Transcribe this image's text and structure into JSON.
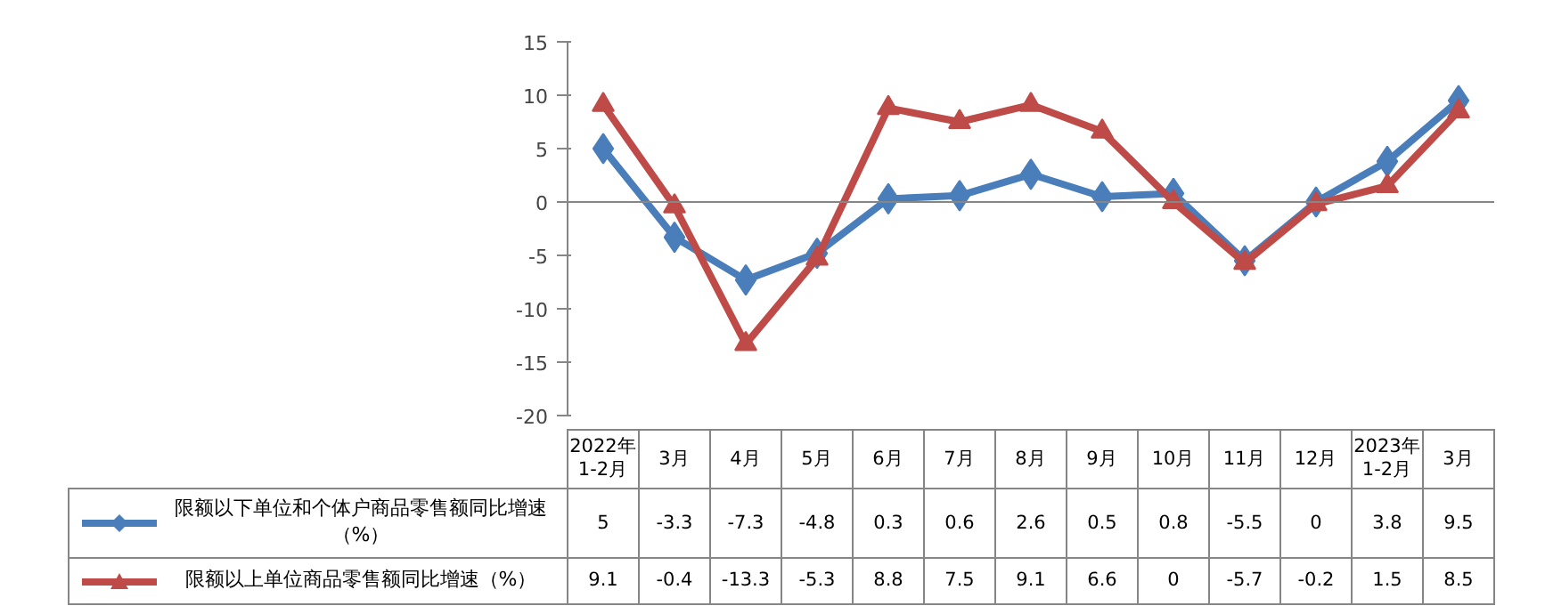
{
  "chart_data": {
    "type": "line",
    "categories": [
      "2022年\n1-2月",
      "3月",
      "4月",
      "5月",
      "6月",
      "7月",
      "8月",
      "9月",
      "10月",
      "11月",
      "12月",
      "2023年\n1-2月",
      "3月"
    ],
    "ylim": [
      -20,
      15
    ],
    "yticks": [
      -20,
      -15,
      -10,
      -5,
      0,
      5,
      10,
      15
    ],
    "legend": "bottom",
    "data_labels": true,
    "series": [
      {
        "name": "限额以下单位和个体户商品零售额同比增速（%）",
        "color": "#4a7ebb",
        "marker": "diamond",
        "values": [
          5,
          -3.3,
          -7.3,
          -4.8,
          0.3,
          0.6,
          2.6,
          0.5,
          0.8,
          -5.5,
          0,
          3.8,
          9.5
        ]
      },
      {
        "name": "限额以上单位商品零售额同比增速（%）",
        "color": "#be4b48",
        "marker": "triangle",
        "values": [
          9.1,
          -0.4,
          -13.3,
          -5.3,
          8.8,
          7.5,
          9.1,
          6.6,
          0,
          -5.7,
          -0.2,
          1.5,
          8.5
        ]
      }
    ]
  }
}
